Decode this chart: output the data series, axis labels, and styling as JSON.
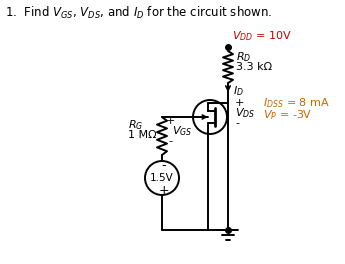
{
  "title_text": "1.  Find $V_{GS}$, $V_{DS}$, and $I_D$ for the circuit shown.",
  "vdd_label": "$V_{DD}$ = 10V",
  "rd_label1": "$R_D$",
  "rd_label2": "3.3 kΩ",
  "id_label": "$I_D$",
  "vds_plus": "+",
  "vds_label": "$V_{DS}$",
  "vds_minus": "-",
  "vgs_plus": "+",
  "vgs_label": "$V_{GS}$",
  "vgs_minus": "-",
  "rg_label1": "$R_G$",
  "rg_label2": "1 MΩ",
  "vs_label": "1.5V",
  "vs_plus": "+",
  "vs_minus": "-",
  "idss_label": "$I_{DSS}$ = 8 mA",
  "vp_label": "$V_P$ = -3V",
  "bg_color": "#ffffff",
  "line_color": "#000000",
  "red_color": "#cc0000",
  "orange_color": "#cc6600"
}
